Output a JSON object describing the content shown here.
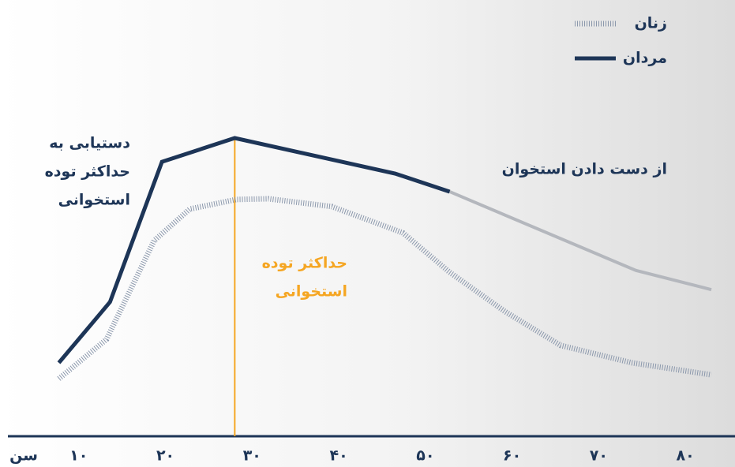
{
  "chart_data": {
    "type": "line",
    "x_label": "سن",
    "xlim": [
      1,
      85
    ],
    "ylim": [
      0,
      100
    ],
    "xticks": [
      {
        "value": 10,
        "label": "۱۰"
      },
      {
        "value": 20,
        "label": "۲۰"
      },
      {
        "value": 30,
        "label": "۳۰"
      },
      {
        "value": 40,
        "label": "۴۰"
      },
      {
        "value": 50,
        "label": "۵۰"
      },
      {
        "value": 60,
        "label": "۶۰"
      },
      {
        "value": 70,
        "label": "۷۰"
      },
      {
        "value": 80,
        "label": "۸۰"
      }
    ],
    "series": [
      {
        "name": "مردان",
        "color": "#1d3557",
        "decline_color": "#b4b7bd",
        "x": [
          7.7,
          13.6,
          19.6,
          28,
          46.5,
          52.8,
          74.3,
          83
        ],
        "values": [
          20.7,
          37.8,
          77.3,
          84,
          74,
          68.9,
          46.7,
          41.3
        ]
      },
      {
        "name": "زنان",
        "color": "#8a97ab",
        "dotted": true,
        "x": [
          7.7,
          13.2,
          18.7,
          22.8,
          28.2,
          31.9,
          39.2,
          47.4,
          52.8,
          59.2,
          65.6,
          73.8,
          83
        ],
        "values": [
          16.2,
          27.3,
          55.1,
          64,
          66.7,
          66.9,
          64.7,
          57.3,
          46.2,
          35.1,
          25.6,
          20.7,
          17.3
        ]
      }
    ],
    "peak_marker": {
      "x": 28,
      "color": "#f5a623",
      "label": [
        "حداکثر توده",
        "استخوانی"
      ]
    },
    "annotations": {
      "reach_peak": [
        "دستیابی به",
        "حداکثر توده",
        "استخوانی"
      ],
      "bone_loss": "از دست دادن استخوان"
    }
  }
}
